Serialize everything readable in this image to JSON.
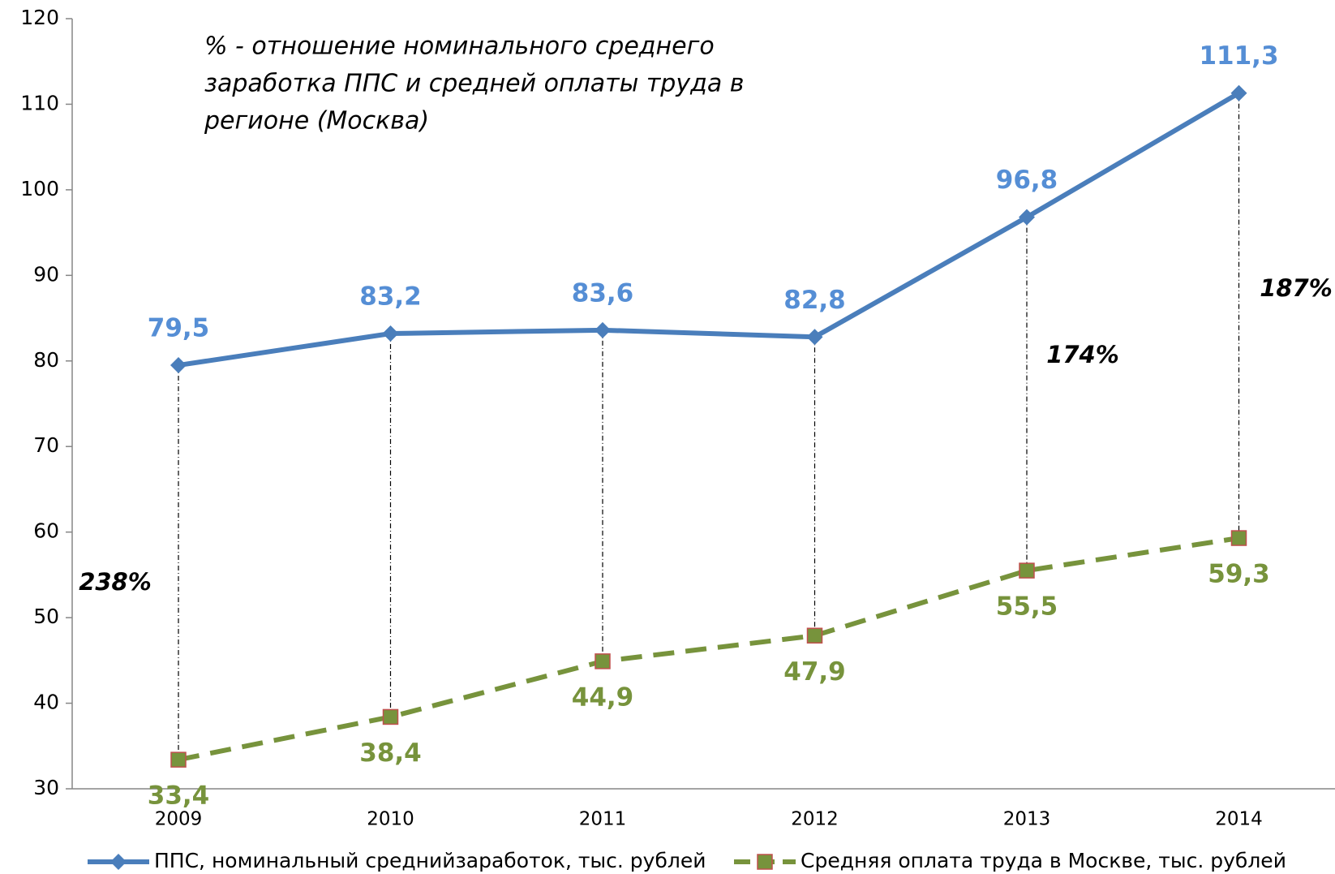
{
  "chart_data": {
    "type": "line",
    "note": [
      "% - отношение номинального среднего",
      "заработка ППС и средней оплаты труда в",
      "регионе (Москва)"
    ],
    "annotations": [
      "238%",
      "174%",
      "187%"
    ],
    "categories": [
      "2009",
      "2010",
      "2011",
      "2012",
      "2013",
      "2014"
    ],
    "series": [
      {
        "name": "ППС, номинальный среднийзаработок, тыс. рублей",
        "color": "#4a7ebb",
        "marker": "diamond",
        "dashed": false,
        "values": [
          79.5,
          83.2,
          83.6,
          82.8,
          96.8,
          111.3
        ],
        "value_labels": [
          "79,5",
          "83,2",
          "83,6",
          "82,8",
          "96,8",
          "111,3"
        ],
        "label_color": "#558ed5"
      },
      {
        "name": "Средняя оплата труда в Москве, тыс. рублей",
        "color": "#77933c",
        "marker": "square",
        "marker_edge": "#c0504d",
        "dashed": true,
        "values": [
          33.4,
          38.4,
          44.9,
          47.9,
          55.5,
          59.3
        ],
        "value_labels": [
          "33,4",
          "38,4",
          "44,9",
          "47,9",
          "55,5",
          "59,3"
        ],
        "label_color": "#77933c"
      }
    ],
    "ylim": [
      30,
      120
    ],
    "yticks": [
      30,
      40,
      50,
      60,
      70,
      80,
      90,
      100,
      110,
      120
    ],
    "grid": false,
    "legend": "bottom"
  }
}
